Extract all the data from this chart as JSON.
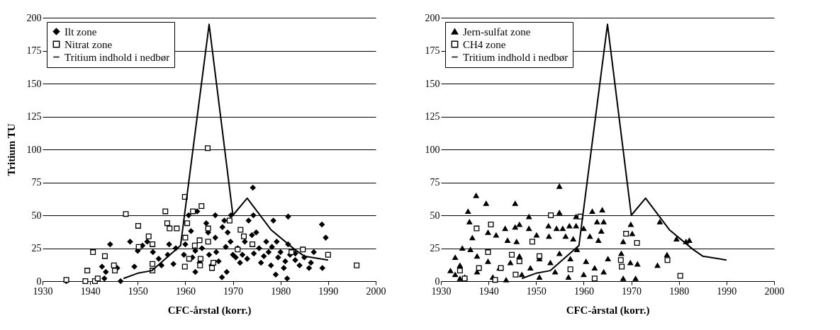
{
  "chart_data": [
    {
      "type": "scatter",
      "xlabel": "CFC-årstal (korr.)",
      "ylabel": "Tritium TU",
      "xlim": [
        1930,
        2000
      ],
      "xticks": [
        1930,
        1940,
        1950,
        1960,
        1970,
        1980,
        1990,
        2000
      ],
      "ylim": [
        0,
        200
      ],
      "yticks": [
        0,
        25,
        50,
        75,
        100,
        125,
        150,
        175,
        200
      ],
      "grid": "y",
      "legend": "top left",
      "series": [
        {
          "name": "Ilt zone",
          "marker": "diamond",
          "color": "#000000",
          "x": [
            1935,
            1942.5,
            1943,
            1943.3,
            1944.2,
            1945.7,
            1946.4,
            1948.4,
            1949.3,
            1950,
            1951,
            1952,
            1953.2,
            1954.4,
            1955,
            1956.3,
            1956.6,
            1957.5,
            1958,
            1959.7,
            1960,
            1960.7,
            1961.2,
            1961.5,
            1962.1,
            1962.1,
            1962.5,
            1963,
            1963.5,
            1964.4,
            1964.8,
            1965,
            1965.5,
            1966.3,
            1966.3,
            1966.5,
            1967,
            1967.7,
            1967.8,
            1968.2,
            1968.5,
            1968.7,
            1968.9,
            1969.5,
            1969.6,
            1970,
            1970.6,
            1971,
            1971.5,
            1972,
            1972.5,
            1973,
            1973.3,
            1974,
            1974.2,
            1974.3,
            1974.4,
            1974.9,
            1975.5,
            1975.9,
            1976.5,
            1977,
            1977.5,
            1978,
            1978.2,
            1978.5,
            1979,
            1979.2,
            1979.5,
            1980,
            1980.7,
            1981,
            1981.4,
            1981.6,
            1981.6,
            1982,
            1983.1,
            1983.1,
            1984,
            1985,
            1986,
            1986.4,
            1987,
            1988.7,
            1988.8,
            1989.5,
            1990
          ],
          "values": [
            0,
            11,
            2,
            7,
            28,
            10,
            0,
            30,
            11,
            23,
            27,
            30,
            22,
            17,
            12,
            20,
            28,
            13,
            25,
            20,
            28,
            50,
            38,
            18,
            23,
            7,
            53,
            14,
            25,
            44,
            37,
            20,
            12,
            50,
            33,
            22,
            15,
            3,
            41,
            46,
            26,
            7,
            37,
            30,
            50,
            20,
            18,
            25,
            14,
            20,
            30,
            17,
            46,
            35,
            71,
            50,
            21,
            37,
            25,
            14,
            19,
            30,
            22,
            12,
            26,
            46,
            5,
            30,
            18,
            22,
            10,
            15,
            2,
            49,
            28,
            20,
            16,
            21,
            12,
            18,
            10,
            14,
            22,
            43,
            10,
            33,
            20
          ]
        },
        {
          "name": "Nitrat zone",
          "marker": "square",
          "color": "#000000",
          "x": [
            1935,
            1939,
            1939.4,
            1941,
            1941.6,
            1940.6,
            1943.1,
            1945,
            1945.2,
            1947.5,
            1950.1,
            1950.2,
            1952.3,
            1953.1,
            1953.1,
            1953.1,
            1955.8,
            1956.2,
            1956.7,
            1958.2,
            1959.9,
            1959.9,
            1960,
            1960.4,
            1960.8,
            1961.6,
            1962,
            1963,
            1963.1,
            1963.2,
            1963.4,
            1964.7,
            1964.8,
            1964.8,
            1965.6,
            1965.9,
            1969.3,
            1971,
            1971.6,
            1972.3,
            1974.1,
            1982.3,
            1984.7,
            1990,
            1996
          ],
          "values": [
            1,
            0,
            8,
            0,
            2,
            22,
            19,
            12,
            8,
            51,
            42,
            26,
            34,
            28,
            13,
            8,
            53,
            44,
            40,
            40,
            64,
            11,
            33,
            44,
            17,
            53,
            27,
            31,
            12,
            17,
            57,
            101,
            40,
            30,
            10,
            14,
            46,
            24,
            39,
            34,
            28,
            22,
            24,
            20,
            12
          ]
        },
        {
          "name": "Tritium indhold i nedbør",
          "type": "line",
          "color": "#000000",
          "x": [
            1947,
            1950,
            1953,
            1959,
            1965,
            1970,
            1973,
            1978,
            1983,
            1985,
            1990
          ],
          "values": [
            2,
            6,
            8,
            27,
            195,
            50,
            63,
            39,
            24,
            19,
            16
          ]
        }
      ]
    },
    {
      "type": "scatter",
      "xlabel": "CFC-årstal (korr.)",
      "xlim": [
        1930,
        2000
      ],
      "xticks": [
        1930,
        1940,
        1950,
        1960,
        1970,
        1980,
        1990,
        2000
      ],
      "ylim": [
        0,
        200
      ],
      "yticks": [
        0,
        25,
        50,
        75,
        100,
        125,
        150,
        175,
        200
      ],
      "grid": "y",
      "legend": "top left",
      "series": [
        {
          "name": "Jern-sulfat zone",
          "marker": "triangle",
          "color": "#000000",
          "x": [
            1932,
            1933,
            1933,
            1934,
            1934,
            1934.5,
            1935,
            1954.9,
            1937.4,
            1939.5,
            1945.6,
            1935.7,
            1948.5,
            1954.9,
            1958.4,
            1961.8,
            1963.9,
            1936,
            1943.5,
            1945.6,
            1946.5,
            1948.5,
            1952.6,
            1954.3,
            1955.6,
            1957,
            1958.4,
            1960,
            1962.8,
            1964.2,
            1963.7,
            1969.9,
            1970.2,
            1976,
            1979.5,
            1982.2,
            1981.5,
            1936.6,
            1939.9,
            1941.6,
            1944,
            1945.9,
            1950.1,
            1952.7,
            1956.2,
            1957.8,
            1961.3,
            1963.1,
            1968.3,
            1977.5,
            1975.5,
            1971.3,
            1969.8,
            1967.9,
            1965.1,
            1962.3,
            1960.5,
            1958.6,
            1957.2,
            1954.9,
            1953,
            1950.7,
            1948.8,
            1946.5,
            1944.6,
            1942.3,
            1939.9,
            1937.6,
            1936.2,
            1937.6,
            1940.9,
            1943.7,
            1947,
            1950.7,
            1954,
            1956.8,
            1960,
            1964.2,
            1968.3,
            1970.9
          ],
          "values": [
            8,
            18,
            5,
            12,
            2,
            25,
            3,
            72,
            65,
            59,
            59,
            53,
            49,
            52,
            49,
            53,
            54,
            45,
            40,
            41,
            43,
            40,
            42,
            40,
            40,
            42,
            42,
            40,
            45,
            45,
            38,
            43,
            36,
            45,
            32,
            31,
            30,
            33,
            37,
            35,
            31,
            30,
            35,
            34,
            34,
            32,
            34,
            31,
            30,
            20,
            12,
            13,
            14,
            21,
            17,
            10,
            15,
            24,
            17,
            21,
            14,
            17,
            10,
            19,
            14,
            10,
            15,
            19,
            24,
            7,
            3,
            1,
            5,
            3,
            7,
            3,
            5,
            7,
            2,
            2
          ]
        },
        {
          "name": "CH4 zone",
          "marker": "square",
          "color": "#000000",
          "x": [
            1934,
            1935,
            1953.1,
            1959.3,
            1940.5,
            1937.5,
            1968.9,
            1971.2,
            1977.6,
            1980.3,
            1967.8,
            1968,
            1962.3,
            1957.2,
            1949.2,
            1950.7,
            1946.5,
            1944.9,
            1939.9,
            1938,
            1942.6,
            1945.7,
            1941.4
          ],
          "values": [
            8,
            2,
            50,
            49,
            43,
            40,
            36,
            29,
            16,
            4,
            16,
            11,
            2,
            9,
            30,
            19,
            15,
            20,
            22,
            10,
            10,
            5,
            1
          ]
        },
        {
          "name": "Tritium indhold i nedbør",
          "type": "line",
          "color": "#000000",
          "x": [
            1947,
            1950,
            1953,
            1959,
            1965,
            1970,
            1973,
            1978,
            1983,
            1985,
            1990
          ],
          "values": [
            2,
            6,
            8,
            27,
            195,
            50,
            63,
            39,
            24,
            19,
            16
          ]
        }
      ]
    }
  ]
}
